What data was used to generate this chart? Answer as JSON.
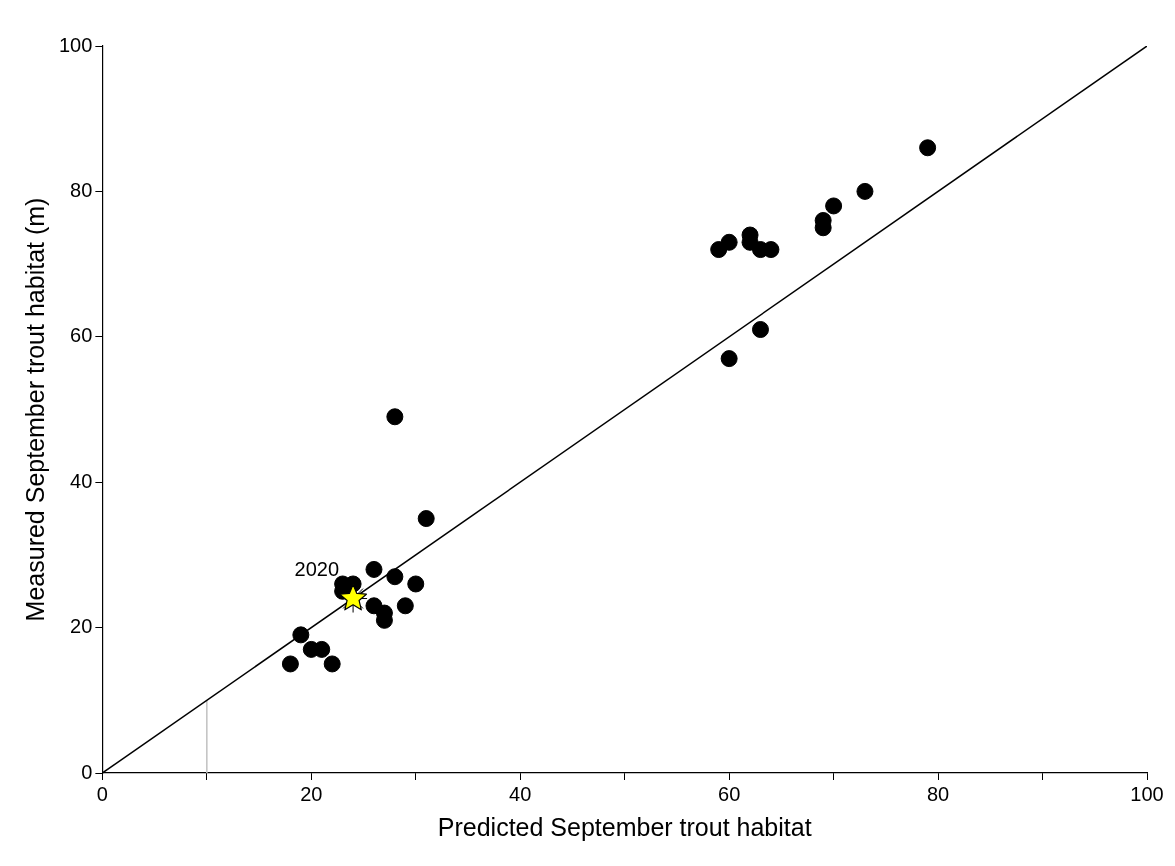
{
  "chart_data": {
    "type": "scatter",
    "xlabel": "Predicted September trout habitat",
    "ylabel": "Measured September trout habitat (m)",
    "xlim": [
      0,
      100
    ],
    "ylim": [
      0,
      100
    ],
    "xticks": [
      0,
      {
        "value": 10,
        "label": null
      },
      20,
      {
        "value": 30,
        "label": null
      },
      40,
      {
        "value": 50,
        "label": null
      },
      60,
      {
        "value": 70,
        "label": null
      },
      80,
      {
        "value": 90,
        "label": null
      },
      100
    ],
    "yticks": [
      0,
      20,
      40,
      60,
      80,
      100
    ],
    "grid": false,
    "legend": false,
    "annotations": [
      {
        "text": "2020",
        "x": 24,
        "y": 24
      }
    ],
    "series": [
      {
        "color": "#000000",
        "marker": "circle",
        "x": [
          18,
          19,
          20,
          21,
          22,
          23,
          23,
          24,
          26,
          26,
          27,
          27,
          28,
          28,
          29,
          30,
          31,
          59,
          60,
          60,
          62,
          62,
          63,
          63,
          64,
          69,
          69,
          70,
          73,
          79
        ],
        "values": [
          15,
          19,
          17,
          17,
          15,
          26,
          25,
          26,
          28,
          23,
          22,
          21,
          27,
          49,
          23,
          26,
          35,
          72,
          73,
          57,
          74,
          73,
          72,
          61,
          72,
          76,
          75,
          78,
          80,
          86
        ]
      },
      {
        "type": "line",
        "color": "#000000",
        "marker": "none",
        "x": [
          0,
          100
        ],
        "values": [
          0,
          100
        ]
      },
      {
        "type": "line",
        "color": "#c0c0c0",
        "marker": "none",
        "x": [
          10,
          10
        ],
        "values": [
          0,
          10
        ]
      },
      {
        "color": "#ffff00",
        "marker": "star",
        "x": [
          24
        ],
        "values": [
          24
        ]
      }
    ]
  }
}
